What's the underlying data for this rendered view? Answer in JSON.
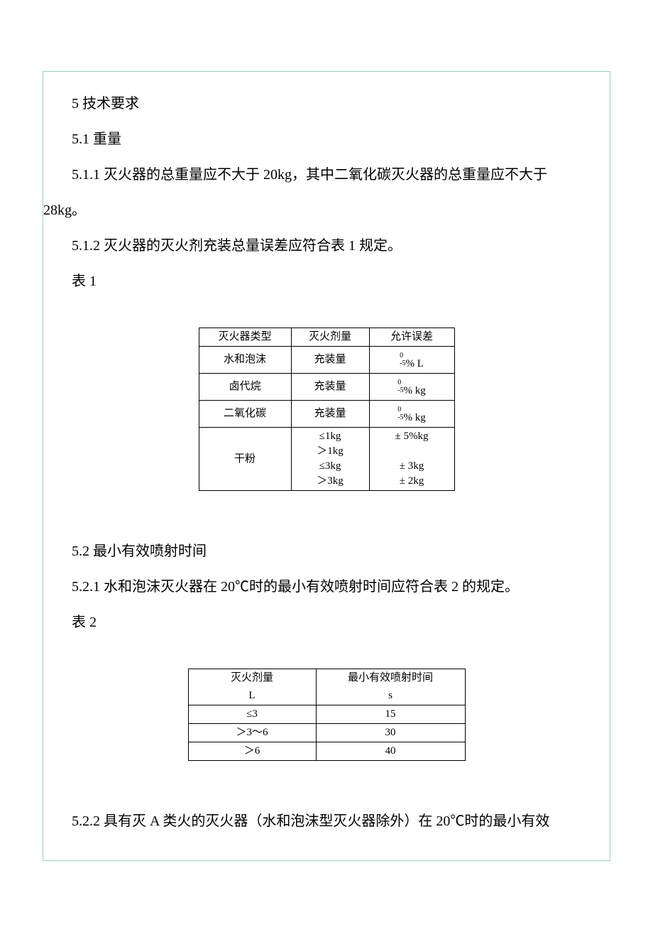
{
  "text": {
    "s5": "5 技术要求",
    "s5_1": "5.1 重量",
    "s5_1_1": "5.1.1 灭火器的总重量应不大于 20kg，其中二氧化碳灭火器的总重量应不大于",
    "s5_1_1b": "28kg。",
    "s5_1_2": "5.1.2 灭火器的灭火剂充装总量误差应符合表 1 规定。",
    "t1_label": "表 1",
    "s5_2": "5.2 最小有效喷射时间",
    "s5_2_1": "5.2.1 水和泡沫灭火器在 20℃时的最小有效喷射时间应符合表 2 的规定。",
    "t2_label": "表 2",
    "s5_2_2": "5.2.2 具有灭 A 类火的灭火器（水和泡沫型灭火器除外）在 20℃时的最小有效"
  },
  "table1": {
    "border_color": "#000000",
    "font_size": 15,
    "header": [
      "灭火器类型",
      "灭火剂量",
      "允许误差"
    ],
    "rows": [
      {
        "type": "水和泡沫",
        "amount": "充装量",
        "tol_top": "0",
        "tol_bot": "-5",
        "unit": "% L"
      },
      {
        "type": "卤代烷",
        "amount": "充装量",
        "tol_top": "0",
        "tol_bot": "-5",
        "unit": "% kg"
      },
      {
        "type": "二氧化碳",
        "amount": "充装量",
        "tol_top": "0",
        "tol_bot": "-5",
        "unit": "% kg"
      }
    ],
    "powder_row": {
      "type": "干粉",
      "amounts": [
        "≤1kg",
        "＞1kg",
        "≤3kg",
        "＞3kg"
      ],
      "tolerances": [
        "± 5%kg",
        "",
        "± 3kg",
        "± 2kg"
      ]
    }
  },
  "table2": {
    "border_color": "#000000",
    "font_size": 15,
    "header_line1": [
      "灭火剂量",
      "最小有效喷射时间"
    ],
    "header_line2": [
      "L",
      "s"
    ],
    "rows": [
      {
        "amount": "≤3",
        "time": "15"
      },
      {
        "amount": "＞3～6",
        "time": "30"
      },
      {
        "amount": "＞6",
        "time": "40"
      }
    ]
  },
  "style": {
    "frame_border_color": "#8fd4c4",
    "text_color": "#000000",
    "background_color": "#ffffff",
    "body_font_size": 20
  }
}
